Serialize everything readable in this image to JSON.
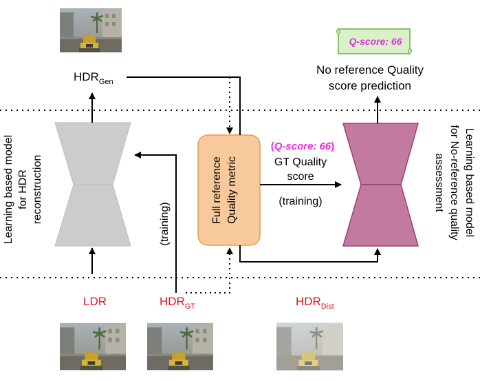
{
  "labels": {
    "hdr_gen_base": "HDR",
    "hdr_gen_sub": "Gen",
    "no_ref_line1": "No reference Quality",
    "no_ref_line2": "score prediction",
    "q_score_banner": "Q-score: 66",
    "q_score_paren_open": "(",
    "q_score_mid": "Q-score: 66",
    "q_score_paren_close": ")",
    "gt_quality_line1": "GT Quality",
    "gt_quality_line2": "score",
    "training_right": "(training)",
    "training_left": "(training)",
    "full_ref_line1": "Full reference",
    "full_ref_line2": "Quality metric",
    "left_side_line1": "Learning based model",
    "left_side_line2": "for HDR",
    "left_side_line3": "reconstruction",
    "right_side_line1": "Learning based model",
    "right_side_line2": "for No-reference quality",
    "right_side_line3": "assessment",
    "ldr": "LDR",
    "hdr_gt_base": "HDR",
    "hdr_gt_sub": "GT",
    "hdr_dist_base": "HDR",
    "hdr_dist_sub": "Dist"
  },
  "colors": {
    "hdr_network": "#cccccc",
    "nr_network": "#c37aa0",
    "nr_network_stroke": "#9c3f71",
    "metric_box": "#f8c99a",
    "metric_box_stroke": "#e69c4f",
    "highlight_text": "#e62ee6",
    "input_label": "#e6141e",
    "banner_fill": "#d9f0c8",
    "banner_stroke": "#6ab04c"
  },
  "icons": {
    "hdr_gen_thumbnail": "game-scene-thumbnail",
    "ldr_thumbnail": "game-scene-thumbnail",
    "hdr_gt_thumbnail": "game-scene-thumbnail",
    "hdr_dist_thumbnail": "game-scene-thumbnail",
    "score_banner": "scroll-banner"
  }
}
